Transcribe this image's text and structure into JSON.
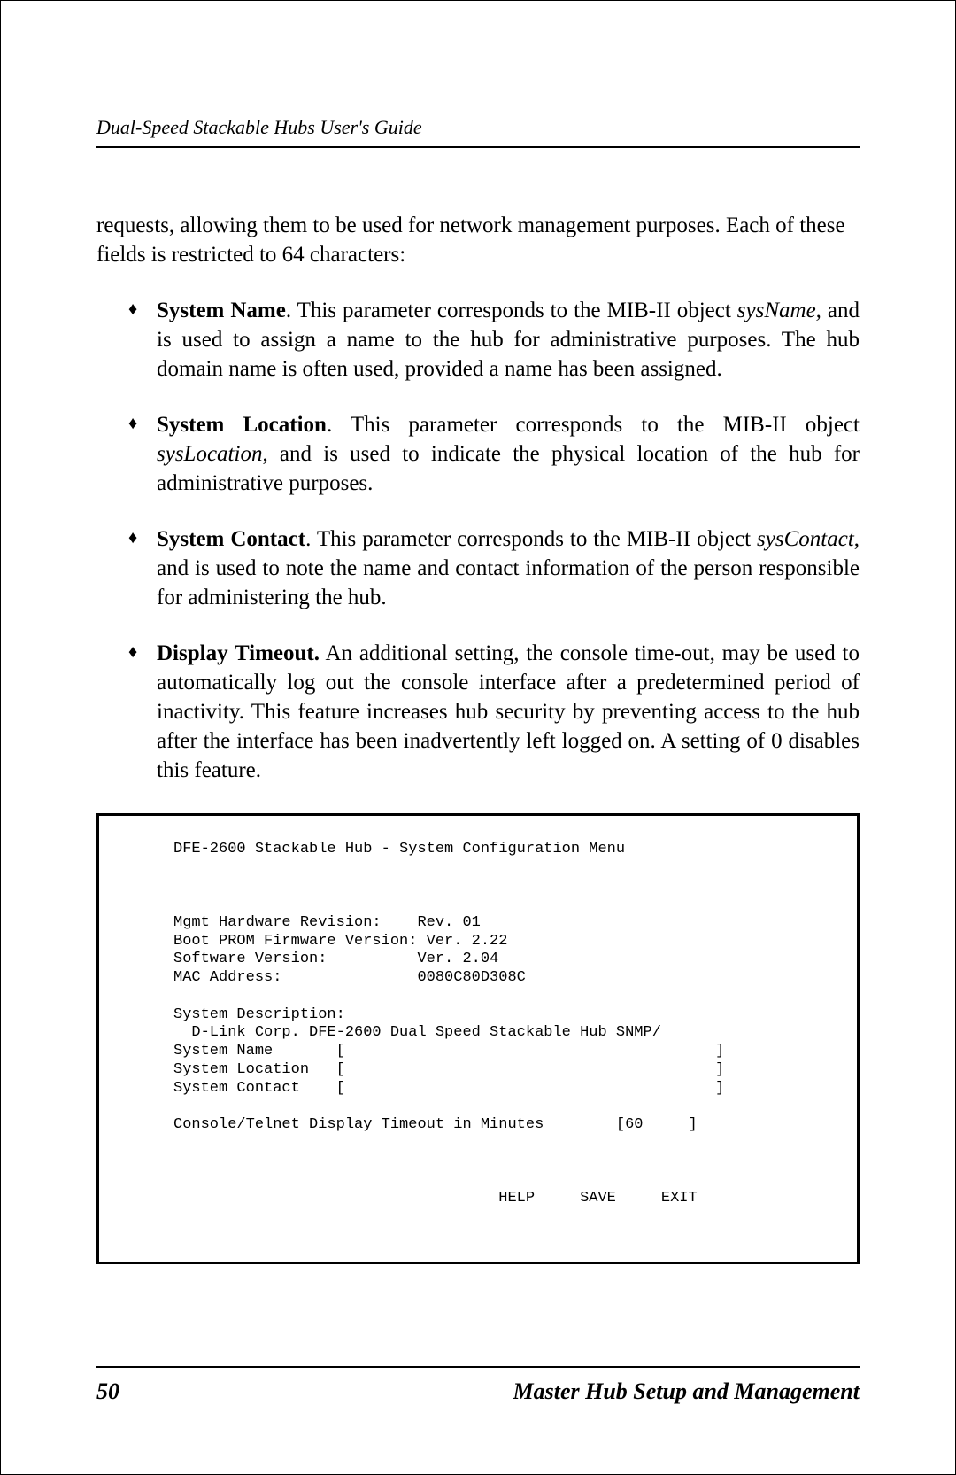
{
  "header": {
    "title": "Dual-Speed Stackable Hubs User's Guide"
  },
  "intro": "requests, allowing them to be used for network management purposes.  Each of these fields is restricted to 64 characters:",
  "bullets": [
    {
      "title": "System Name",
      "period": ".",
      "after": "   This  parameter  corresponds  to  the  MIB-II  object ",
      "italic": "sysName,",
      "rest": " and is used to assign a name to the hub for administrative purposes.  The hub     domain name is often used, provided a name has been assigned."
    },
    {
      "title": "System Location",
      "period": ".",
      "after": "  This parameter corresponds to the MIB-II object ",
      "italic": "sysLocation",
      "rest": ", and is used to indicate the physical location of the hub for administrative purposes."
    },
    {
      "title": "System Contact",
      "period": ".",
      "after": "  This parameter corresponds to the MIB-II object ",
      "italic": "sysContact",
      "rest": ", and is used to note the name and contact information of the person responsible for administering the hub."
    },
    {
      "title": "Display Timeout.",
      "period": "",
      "after": "  An additional setting, the console time-out, may be used to automatically log out the console interface after a predetermined period of inactivity.  This feature increases hub security by preventing access to the hub after the interface has been inadvertently left logged on.  A setting of 0 disables this feature.",
      "italic": "",
      "rest": ""
    }
  ],
  "terminal": {
    "line1": "DFE-2600 Stackable Hub - System Configuration Menu",
    "line2": "Mgmt Hardware Revision:    Rev. 01",
    "line3": "Boot PROM Firmware Version: Ver. 2.22",
    "line4": "Software Version:          Ver. 2.04",
    "line5": "MAC Address:               0080C80D308C",
    "line6": "System Description:",
    "line7": "  D-Link Corp. DFE-2600 Dual Speed Stackable Hub SNMP/",
    "line8": "System Name       [                                         ]",
    "line9": "System Location   [                                         ]",
    "line10": "System Contact    [                                         ]",
    "line11": "Console/Telnet Display Timeout in Minutes        [60     ]",
    "buttons": "                                    HELP     SAVE     EXIT"
  },
  "footer": {
    "page": "50",
    "title": "Master Hub Setup and Management"
  }
}
